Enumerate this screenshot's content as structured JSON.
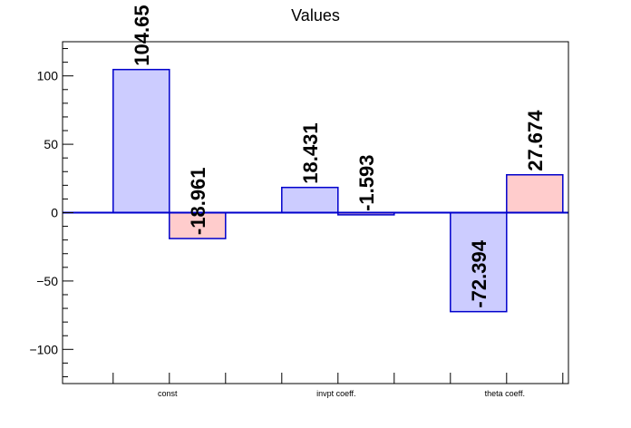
{
  "chart_data": {
    "type": "bar",
    "title": "Values",
    "xlabel": "",
    "ylabel": "",
    "ylim": [
      -125,
      125
    ],
    "yticks": [
      -100,
      -50,
      0,
      50,
      100
    ],
    "yticklabels": [
      "−100",
      "−50",
      "0",
      "50",
      "100"
    ],
    "categories": [
      "const",
      "invpt coeff.",
      "theta coeff."
    ],
    "series": [
      {
        "values": [
          104.65,
          18.431,
          -72.394
        ],
        "labels": [
          "104.65",
          "18.431",
          "-72.394"
        ],
        "color": "#ccccff"
      },
      {
        "values": [
          -18.961,
          -1.593,
          27.674
        ],
        "labels": [
          "-18.961",
          "-1.593",
          "27.674"
        ],
        "color": "#ffcccc"
      }
    ],
    "bar_edge_color": "#0000cc",
    "baseline_color": "#0000cc",
    "grid": false,
    "legend": "none"
  }
}
